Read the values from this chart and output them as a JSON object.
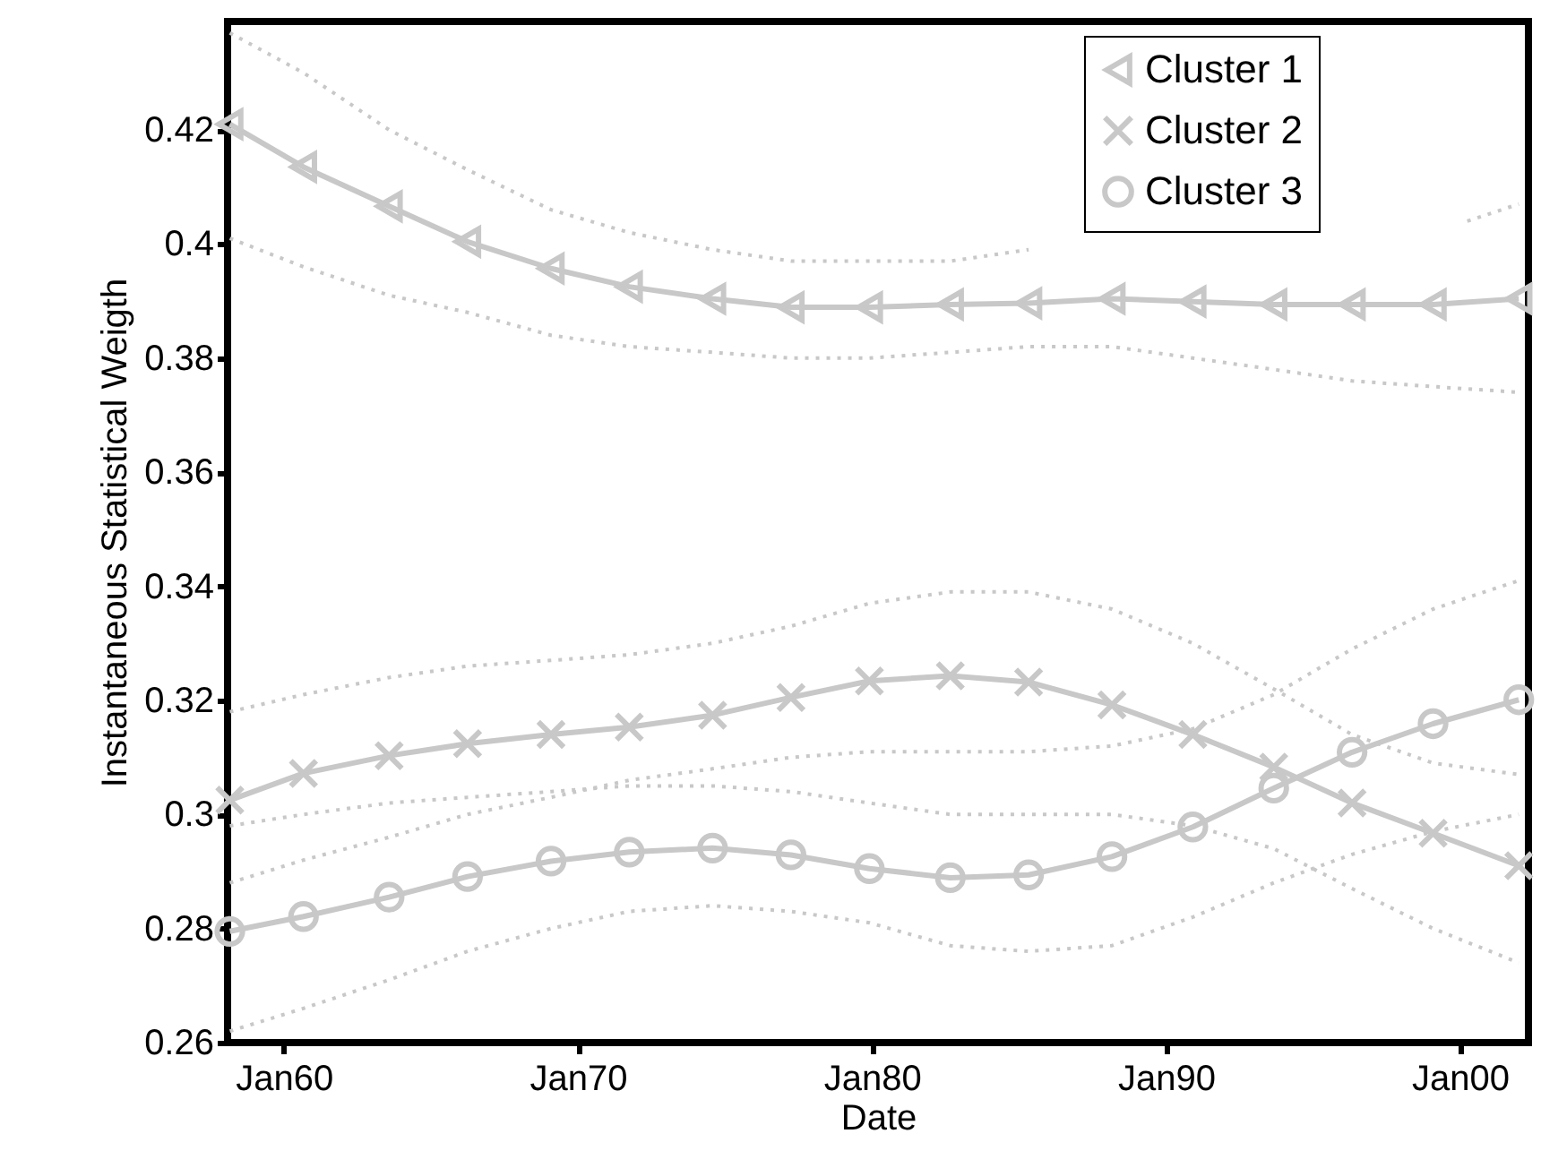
{
  "chart_data": {
    "type": "line",
    "x": [
      "1958-03",
      "1960-09",
      "1963-08",
      "1966-04",
      "1969-02",
      "1971-10",
      "1974-08",
      "1977-04",
      "1979-12",
      "1982-09",
      "1985-05",
      "1988-03",
      "1990-12",
      "1993-09",
      "1996-05",
      "1999-02",
      "2002-01"
    ],
    "series": [
      {
        "name": "Cluster 1",
        "color": "#c8c8c8",
        "marker": "triangle",
        "line_style": "solid",
        "values": [
          0.421,
          0.4135,
          0.4066,
          0.4004,
          0.3957,
          0.3925,
          0.3904,
          0.3889,
          0.3889,
          0.3894,
          0.3896,
          0.3904,
          0.3899,
          0.3894,
          0.3894,
          0.3894,
          0.3904
        ]
      },
      {
        "name": "Cluster 2",
        "color": "#c8c8c8",
        "marker": "cross",
        "line_style": "solid",
        "values": [
          0.3025,
          0.3072,
          0.3103,
          0.3124,
          0.314,
          0.3153,
          0.3174,
          0.3205,
          0.3234,
          0.3243,
          0.3232,
          0.3192,
          0.314,
          0.3083,
          0.302,
          0.2967,
          0.291
        ]
      },
      {
        "name": "Cluster 3",
        "color": "#c8c8c8",
        "marker": "circle",
        "line_style": "solid",
        "values": [
          0.2795,
          0.2821,
          0.2855,
          0.2891,
          0.2918,
          0.2934,
          0.2941,
          0.2929,
          0.2905,
          0.2889,
          0.2894,
          0.2926,
          0.2978,
          0.3046,
          0.3109,
          0.3159,
          0.3201
        ]
      },
      {
        "color": "#c8c8c8",
        "marker": "none",
        "line_style": "dotted",
        "values": [
          0.401,
          0.396,
          0.391,
          0.388,
          0.384,
          0.382,
          0.381,
          0.38,
          0.38,
          0.381,
          0.382,
          0.382,
          0.38,
          0.378,
          0.376,
          0.375,
          0.374
        ]
      },
      {
        "color": "#c8c8c8",
        "marker": "none",
        "line_style": "dotted",
        "x": [
          "1958-03",
          "1960-09",
          "1963-08",
          "1966-04",
          "1969-02",
          "1971-10",
          "1974-08",
          "1977-04",
          "1979-12",
          "1982-09",
          "1985-05",
          "1988-03",
          "1990-12",
          "1993-09",
          "1996-05",
          "1999-02",
          "2000-04",
          "2002-01"
        ],
        "values": [
          0.437,
          0.43,
          0.42,
          0.413,
          0.406,
          0.402,
          0.399,
          0.397,
          0.397,
          0.397,
          0.399,
          null,
          null,
          null,
          null,
          null,
          0.404,
          0.407
        ]
      },
      {
        "color": "#c8c8c8",
        "marker": "none",
        "line_style": "dotted",
        "values": [
          0.298,
          0.3,
          0.302,
          0.303,
          0.304,
          0.305,
          0.305,
          0.304,
          0.302,
          0.3,
          0.3,
          0.3,
          0.298,
          0.294,
          0.287,
          0.28,
          0.274
        ]
      },
      {
        "color": "#c8c8c8",
        "marker": "none",
        "line_style": "dotted",
        "values": [
          0.318,
          0.321,
          0.324,
          0.326,
          0.327,
          0.328,
          0.33,
          0.333,
          0.337,
          0.339,
          0.339,
          0.336,
          0.33,
          0.322,
          0.314,
          0.309,
          0.307
        ]
      },
      {
        "color": "#c8c8c8",
        "marker": "none",
        "line_style": "dotted",
        "values": [
          0.262,
          0.266,
          0.271,
          0.276,
          0.28,
          0.283,
          0.284,
          0.283,
          0.281,
          0.277,
          0.276,
          0.277,
          0.282,
          0.288,
          0.293,
          0.297,
          0.3
        ]
      },
      {
        "color": "#c8c8c8",
        "marker": "none",
        "line_style": "dotted",
        "values": [
          0.288,
          0.292,
          0.296,
          0.3,
          0.303,
          0.306,
          0.308,
          0.31,
          0.311,
          0.311,
          0.311,
          0.312,
          0.315,
          0.321,
          0.329,
          0.336,
          0.341
        ]
      }
    ],
    "xlabel": "Date",
    "ylabel": "Instantaneous Statistical Weigth",
    "xlim": [
      "1958-02",
      "2002-05"
    ],
    "xticks": [
      {
        "value": "1960-01",
        "label": "Jan60"
      },
      {
        "value": "1970-01",
        "label": "Jan70"
      },
      {
        "value": "1980-01",
        "label": "Jan80"
      },
      {
        "value": "1990-01",
        "label": "Jan90"
      },
      {
        "value": "2000-01",
        "label": "Jan00"
      }
    ],
    "ylim": [
      0.26,
      0.439
    ],
    "yticks": [
      0.26,
      0.28,
      0.3,
      0.32,
      0.34,
      0.36,
      0.38,
      0.4,
      0.42
    ],
    "grid": false,
    "legend": "top right"
  }
}
